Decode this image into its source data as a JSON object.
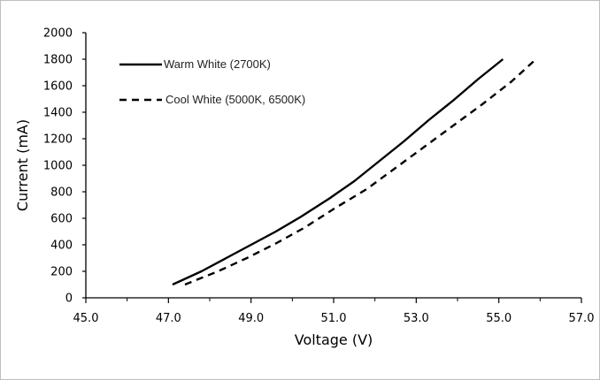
{
  "chart_data": {
    "type": "line",
    "title": "",
    "xlabel": "Voltage (V)",
    "ylabel": "Current (mA)",
    "xlim": [
      45.0,
      57.0
    ],
    "ylim": [
      0,
      2000
    ],
    "x_ticks": [
      "45.0",
      "47.0",
      "49.0",
      "51.0",
      "53.0",
      "55.0",
      "57.0"
    ],
    "y_ticks": [
      "0",
      "200",
      "400",
      "600",
      "800",
      "1000",
      "1200",
      "1400",
      "1600",
      "1800",
      "2000"
    ],
    "grid": false,
    "legend_position": "top-left",
    "series": [
      {
        "name": "Warm White (2700K)",
        "style": "solid",
        "color": "#000000",
        "points": [
          [
            47.1,
            100
          ],
          [
            47.8,
            200
          ],
          [
            48.4,
            300
          ],
          [
            49.0,
            400
          ],
          [
            49.6,
            500
          ],
          [
            50.2,
            610
          ],
          [
            50.9,
            750
          ],
          [
            51.5,
            880
          ],
          [
            52.1,
            1030
          ],
          [
            52.7,
            1180
          ],
          [
            53.3,
            1340
          ],
          [
            53.9,
            1490
          ],
          [
            54.5,
            1650
          ],
          [
            55.1,
            1800
          ]
        ]
      },
      {
        "name": "Cool White (5000K, 6500K)",
        "style": "dashed",
        "color": "#000000",
        "points": [
          [
            47.4,
            100
          ],
          [
            48.2,
            200
          ],
          [
            48.9,
            300
          ],
          [
            49.6,
            410
          ],
          [
            50.3,
            530
          ],
          [
            51.0,
            670
          ],
          [
            51.8,
            820
          ],
          [
            52.5,
            980
          ],
          [
            53.2,
            1140
          ],
          [
            53.9,
            1300
          ],
          [
            54.6,
            1460
          ],
          [
            55.3,
            1630
          ],
          [
            55.9,
            1800
          ]
        ]
      }
    ]
  }
}
